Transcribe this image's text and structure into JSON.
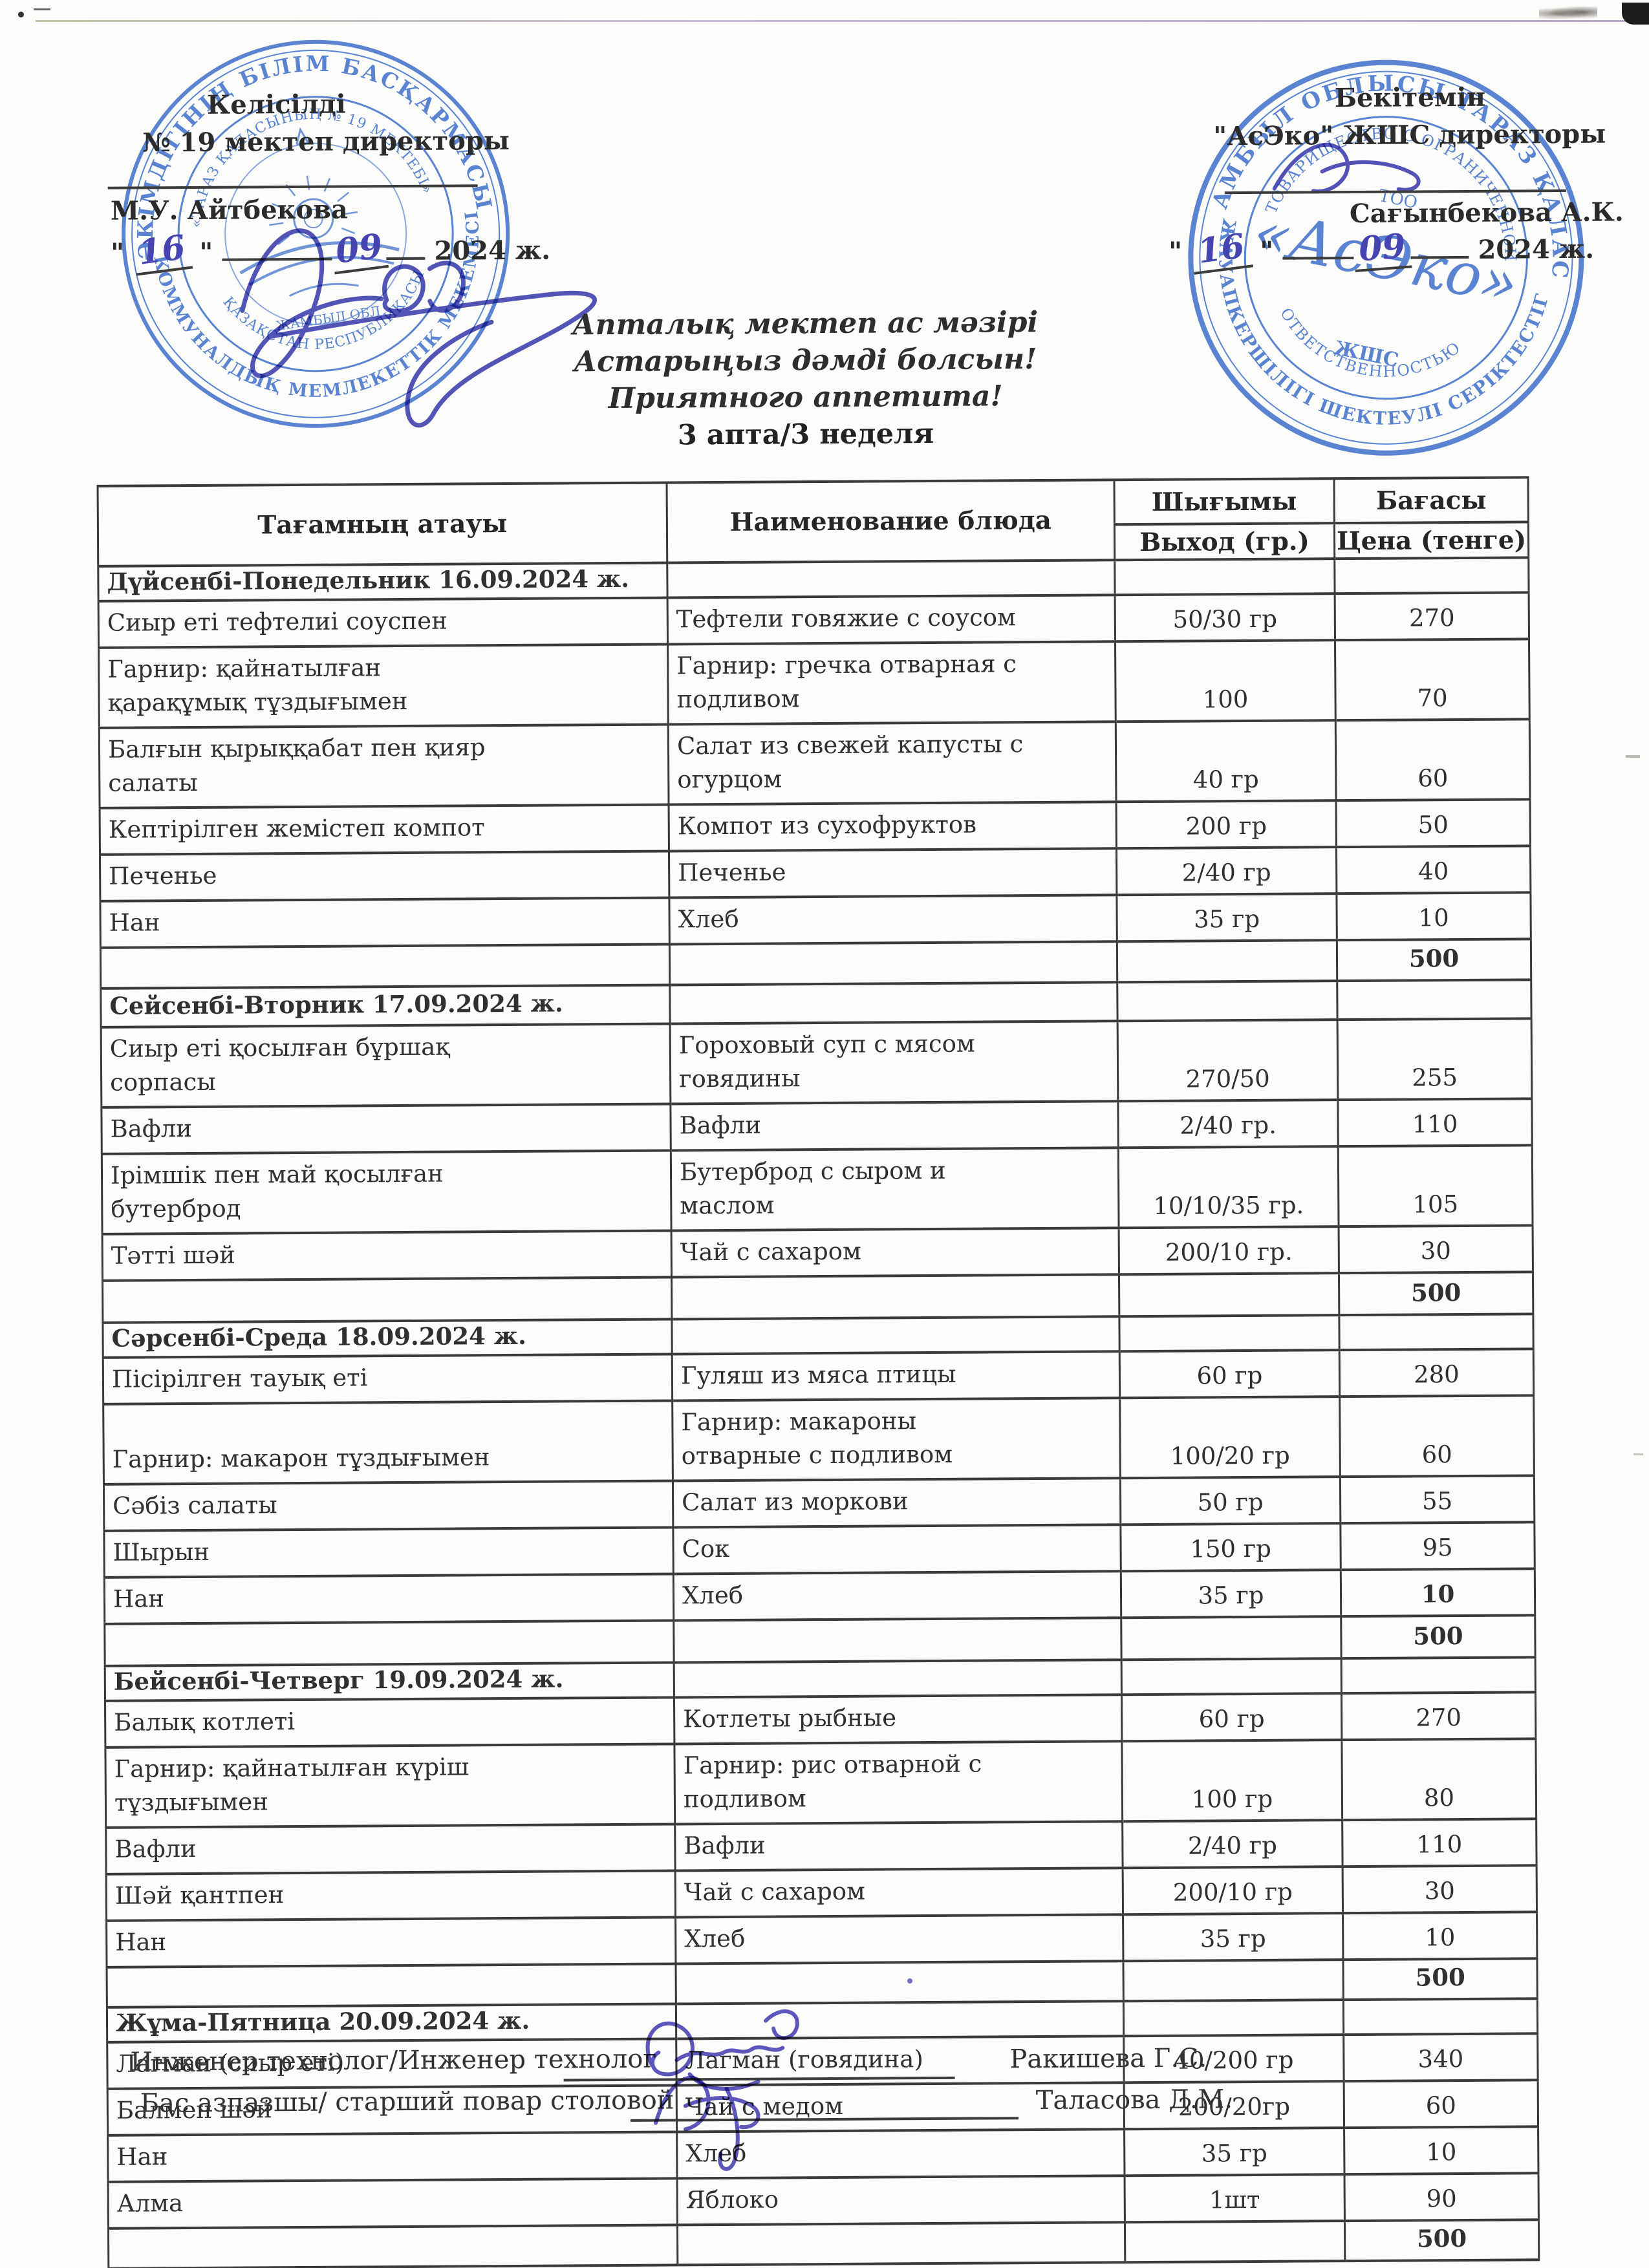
{
  "approval_left": {
    "title": "Келісілді",
    "role": "№ 19 мектеп директоры",
    "name": "М.У. Айтбекова",
    "day": "16",
    "month": "09",
    "year": "2024 ж."
  },
  "approval_right": {
    "title": "Бекітемін",
    "role": "\"АсЭко\" ЖШС директоры",
    "name": "Сағынбекова А.К.",
    "day": "16",
    "month": "09",
    "year": "2024 ж."
  },
  "misc": {
    "quote": "\""
  },
  "title": {
    "line1": "Апталық мектеп ас мәзірі",
    "line2": "Астарыңыз дәмді болсын!",
    "line3": "Приятного аппетита!",
    "line4": "3 апта/3 неделя"
  },
  "table": {
    "headers": {
      "col1": "Тағамның атауы",
      "col2": "Наименование блюда",
      "col3": "Шығымы",
      "col4": "Бағасы",
      "col3_sub": "Выход (гр.)",
      "col4_sub": "Цена (тенге)"
    },
    "rows": [
      {
        "type": "section",
        "text": "Дүйсенбі-Понедельник 16.09.2024 ж."
      },
      {
        "type": "dish",
        "kk": "Сиыр еті тефтелиі соуспен",
        "ru": "Тефтели говяжие с соусом",
        "out": "50/30 гр",
        "price": "270"
      },
      {
        "type": "dish",
        "kk": "Гарнир: қайнатылған қарақұмық тұздығымен",
        "ru": "Гарнир: гречка отварная с подливом",
        "out": "100",
        "price": "70"
      },
      {
        "type": "dish",
        "kk": "Балғын қырыққабат пен қияр салаты",
        "ru": "Салат из свежей капусты с огурцом",
        "out": "40 гр",
        "price": "60"
      },
      {
        "type": "dish",
        "kk": "Кептірілген жемістеп компот",
        "ru": "Компот из сухофруктов",
        "out": "200 гр",
        "price": "50"
      },
      {
        "type": "dish",
        "kk": "Печенье",
        "ru": "Печенье",
        "out": "2/40 гр",
        "price": "40"
      },
      {
        "type": "dish",
        "kk": "Нан",
        "ru": "Хлеб",
        "out": "35 гр",
        "price": "10"
      },
      {
        "type": "total",
        "price": "500"
      },
      {
        "type": "section",
        "text": "Сейсенбі-Вторник 17.09.2024 ж."
      },
      {
        "type": "dish",
        "kk": "Сиыр еті қосылған бұршақ сорпасы",
        "ru": "Гороховый суп с мясом говядины",
        "out": "270/50",
        "price": "255"
      },
      {
        "type": "dish",
        "kk": "Вафли",
        "ru": "Вафли",
        "out": "2/40 гр.",
        "price": "110"
      },
      {
        "type": "dish",
        "kk": "Ірімшік пен май қосылған бутерброд",
        "ru": "Бутерброд с сыром и маслом",
        "out": "10/10/35 гр.",
        "price": "105"
      },
      {
        "type": "dish",
        "kk": "Тәтті шәй",
        "ru": "Чай с сахаром",
        "out": "200/10 гр.",
        "price": "30"
      },
      {
        "type": "total",
        "price": "500"
      },
      {
        "type": "section",
        "text": "Сәрсенбі-Среда 18.09.2024 ж."
      },
      {
        "type": "dish",
        "kk": "Пісірілген тауық еті",
        "ru": "Гуляш из мяса птицы",
        "out": "60 гр",
        "price": "280"
      },
      {
        "type": "dish",
        "kk": "Гарнир: макарон тұздығымен",
        "ru": "Гарнир: макароны отварные  с подливом",
        "out": "100/20 гр",
        "price": "60"
      },
      {
        "type": "dish",
        "kk": "Сәбіз салаты",
        "ru": "Салат из моркови",
        "out": "50 гр",
        "price": "55"
      },
      {
        "type": "dish",
        "kk": "Шырын",
        "ru": "Сок",
        "out": "150 гр",
        "price": "95"
      },
      {
        "type": "dish",
        "kk": "Нан",
        "ru": "Хлеб",
        "out": "35 гр",
        "price": "10",
        "price_bold": true
      },
      {
        "type": "total",
        "price": "500"
      },
      {
        "type": "section",
        "text": "Бейсенбі-Четверг 19.09.2024 ж."
      },
      {
        "type": "dish",
        "kk": "Балық котлеті",
        "ru": "Котлеты рыбные",
        "out": "60 гр",
        "price": "270"
      },
      {
        "type": "dish",
        "kk": "Гарнир: қайнатылған күріш тұздығымен",
        "ru": "Гарнир: рис отварной с подливом",
        "out": "100 гр",
        "price": "80"
      },
      {
        "type": "dish",
        "kk": "Вафли",
        "ru": "Вафли",
        "out": "2/40 гр",
        "price": "110"
      },
      {
        "type": "dish",
        "kk": "Шәй қантпен",
        "ru": "Чай с сахаром",
        "out": "200/10 гр",
        "price": "30"
      },
      {
        "type": "dish",
        "kk": "Нан",
        "ru": "Хлеб",
        "out": "35 гр",
        "price": "10"
      },
      {
        "type": "total",
        "price": "500"
      },
      {
        "type": "section",
        "text": "Жұма-Пятница 20.09.2024 ж."
      },
      {
        "type": "dish",
        "kk": "Лагман (сиыр еті)",
        "ru": "Лагман (говядина)",
        "out": "40/200 гр",
        "price": "340"
      },
      {
        "type": "dish",
        "kk": "Балмен шәй",
        "ru": "Чай с медом",
        "out": "200/20гр",
        "price": "60"
      },
      {
        "type": "dish",
        "kk": "Нан",
        "ru": "Хлеб",
        "out": "35 гр",
        "price": "10"
      },
      {
        "type": "dish",
        "kk": "Алма",
        "ru": "Яблоко",
        "out": "1шт",
        "price": "90"
      },
      {
        "type": "total",
        "price": "500"
      }
    ]
  },
  "footer": {
    "row1_label": "Инженер технолог/Инженер технолог",
    "row1_name": "Ракишева Г.С.",
    "row2_label": "Бас азпазшы/ старший повар столовой",
    "row2_name": "Таласова Д.М."
  },
  "stamps": {
    "left": {
      "ring_top": "ӘКІМДІГІНІҢ БІЛІМ БАСҚАРМАСЫ",
      "ring_bottom": "КОММУНАЛДЫҚ МЕМЛЕКЕТТІК МЕКЕМЕСІ",
      "inner_top": "«ТАРАЗ ҚАЛАСЫНЫҢ № 19 МЕКТЕБІ»",
      "inner_bottom": "ҚАЗАҚСТАН РЕСПУБЛИКАСЫ",
      "small": "ЖАМБЫЛ ОБЛ"
    },
    "right": {
      "ring_top": "ЖАМБЫЛ ОБЛЫСЫ ТАРАЗ ҚАЛАСЫ",
      "ring_bottom": "ЖАУАПКЕРШІЛІГІ ШЕКТЕУЛІ СЕРІКТЕСТІГІ",
      "inner_top": "ТОВАРИЩЕСТВО С ОГРАНИЧЕННОЙ",
      "inner_bottom": "ОТВЕТСТВЕННОСТЬЮ",
      "center_top": "ТОО",
      "center_name": "«АсЭко»",
      "center_bottom": "ЖШС"
    }
  },
  "colors": {
    "stamp_blue": "#3a6cc8",
    "ink_blue": "#4544b0"
  }
}
